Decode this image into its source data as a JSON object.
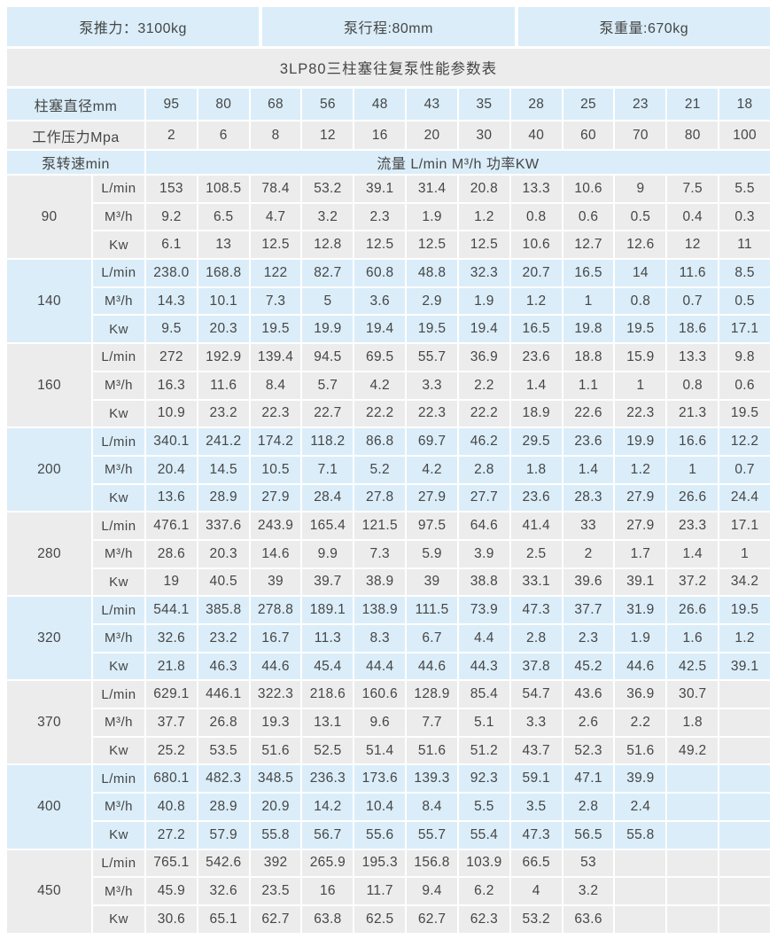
{
  "colors": {
    "accent_blue": "#daedf9",
    "row_grey": "#ececec",
    "text": "#464646"
  },
  "meta": {
    "thrust": "泵推力：3100kg",
    "stroke": "泵行程:80mm",
    "weight": "泵重量:670kg"
  },
  "title": "3LP80三柱塞往复泵性能参数表",
  "headers": {
    "diameter_label": "柱塞直径mm",
    "diameters": [
      "95",
      "80",
      "68",
      "56",
      "48",
      "43",
      "35",
      "28",
      "25",
      "23",
      "21",
      "18"
    ],
    "pressure_label": "工作压力Mpa",
    "pressures": [
      "2",
      "6",
      "8",
      "12",
      "16",
      "20",
      "30",
      "40",
      "60",
      "70",
      "80",
      "100"
    ],
    "speed_label": "泵转速min",
    "flow_power_label": "流量 L/min M³/h  功率KW"
  },
  "unit_labels": [
    "L/min",
    "M³/h",
    "Kw"
  ],
  "groups": [
    {
      "speed": "90",
      "tone": "grey",
      "rows": [
        [
          "153",
          "108.5",
          "78.4",
          "53.2",
          "39.1",
          "31.4",
          "20.8",
          "13.3",
          "10.6",
          "9",
          "7.5",
          "5.5"
        ],
        [
          "9.2",
          "6.5",
          "4.7",
          "3.2",
          "2.3",
          "1.9",
          "1.2",
          "0.8",
          "0.6",
          "0.5",
          "0.4",
          "0.3"
        ],
        [
          "6.1",
          "13",
          "12.5",
          "12.8",
          "12.5",
          "12.5",
          "12.5",
          "10.6",
          "12.7",
          "12.6",
          "12",
          "11"
        ]
      ]
    },
    {
      "speed": "140",
      "tone": "blue",
      "rows": [
        [
          "238.0",
          "168.8",
          "122",
          "82.7",
          "60.8",
          "48.8",
          "32.3",
          "20.7",
          "16.5",
          "14",
          "11.6",
          "8.5"
        ],
        [
          "14.3",
          "10.1",
          "7.3",
          "5",
          "3.6",
          "2.9",
          "1.9",
          "1.2",
          "1",
          "0.8",
          "0.7",
          "0.5"
        ],
        [
          "9.5",
          "20.3",
          "19.5",
          "19.9",
          "19.4",
          "19.5",
          "19.4",
          "16.5",
          "19.8",
          "19.5",
          "18.6",
          "17.1"
        ]
      ]
    },
    {
      "speed": "160",
      "tone": "grey",
      "rows": [
        [
          "272",
          "192.9",
          "139.4",
          "94.5",
          "69.5",
          "55.7",
          "36.9",
          "23.6",
          "18.8",
          "15.9",
          "13.3",
          "9.8"
        ],
        [
          "16.3",
          "11.6",
          "8.4",
          "5.7",
          "4.2",
          "3.3",
          "2.2",
          "1.4",
          "1.1",
          "1",
          "0.8",
          "0.6"
        ],
        [
          "10.9",
          "23.2",
          "22.3",
          "22.7",
          "22.2",
          "22.3",
          "22.2",
          "18.9",
          "22.6",
          "22.3",
          "21.3",
          "19.5"
        ]
      ]
    },
    {
      "speed": "200",
      "tone": "blue",
      "rows": [
        [
          "340.1",
          "241.2",
          "174.2",
          "118.2",
          "86.8",
          "69.7",
          "46.2",
          "29.5",
          "23.6",
          "19.9",
          "16.6",
          "12.2"
        ],
        [
          "20.4",
          "14.5",
          "10.5",
          "7.1",
          "5.2",
          "4.2",
          "2.8",
          "1.8",
          "1.4",
          "1.2",
          "1",
          "0.7"
        ],
        [
          "13.6",
          "28.9",
          "27.9",
          "28.4",
          "27.8",
          "27.9",
          "27.7",
          "23.6",
          "28.3",
          "27.9",
          "26.6",
          "24.4"
        ]
      ]
    },
    {
      "speed": "280",
      "tone": "grey",
      "rows": [
        [
          "476.1",
          "337.6",
          "243.9",
          "165.4",
          "121.5",
          "97.5",
          "64.6",
          "41.4",
          "33",
          "27.9",
          "23.3",
          "17.1"
        ],
        [
          "28.6",
          "20.3",
          "14.6",
          "9.9",
          "7.3",
          "5.9",
          "3.9",
          "2.5",
          "2",
          "1.7",
          "1.4",
          "1"
        ],
        [
          "19",
          "40.5",
          "39",
          "39.7",
          "38.9",
          "39",
          "38.8",
          "33.1",
          "39.6",
          "39.1",
          "37.2",
          "34.2"
        ]
      ]
    },
    {
      "speed": "320",
      "tone": "blue",
      "rows": [
        [
          "544.1",
          "385.8",
          "278.8",
          "189.1",
          "138.9",
          "111.5",
          "73.9",
          "47.3",
          "37.7",
          "31.9",
          "26.6",
          "19.5"
        ],
        [
          "32.6",
          "23.2",
          "16.7",
          "11.3",
          "8.3",
          "6.7",
          "4.4",
          "2.8",
          "2.3",
          "1.9",
          "1.6",
          "1.2"
        ],
        [
          "21.8",
          "46.3",
          "44.6",
          "45.4",
          "44.4",
          "44.6",
          "44.3",
          "37.8",
          "45.2",
          "44.6",
          "42.5",
          "39.1"
        ]
      ]
    },
    {
      "speed": "370",
      "tone": "grey",
      "rows": [
        [
          "629.1",
          "446.1",
          "322.3",
          "218.6",
          "160.6",
          "128.9",
          "85.4",
          "54.7",
          "43.6",
          "36.9",
          "30.7",
          ""
        ],
        [
          "37.7",
          "26.8",
          "19.3",
          "13.1",
          "9.6",
          "7.7",
          "5.1",
          "3.3",
          "2.6",
          "2.2",
          "1.8",
          ""
        ],
        [
          "25.2",
          "53.5",
          "51.6",
          "52.5",
          "51.4",
          "51.6",
          "51.2",
          "43.7",
          "52.3",
          "51.6",
          "49.2",
          ""
        ]
      ]
    },
    {
      "speed": "400",
      "tone": "blue",
      "rows": [
        [
          "680.1",
          "482.3",
          "348.5",
          "236.3",
          "173.6",
          "139.3",
          "92.3",
          "59.1",
          "47.1",
          "39.9",
          "",
          ""
        ],
        [
          "40.8",
          "28.9",
          "20.9",
          "14.2",
          "10.4",
          "8.4",
          "5.5",
          "3.5",
          "2.8",
          "2.4",
          "",
          ""
        ],
        [
          "27.2",
          "57.9",
          "55.8",
          "56.7",
          "55.6",
          "55.7",
          "55.4",
          "47.3",
          "56.5",
          "55.8",
          "",
          ""
        ]
      ]
    },
    {
      "speed": "450",
      "tone": "grey",
      "rows": [
        [
          "765.1",
          "542.6",
          "392",
          "265.9",
          "195.3",
          "156.8",
          "103.9",
          "66.5",
          "53",
          "",
          "",
          ""
        ],
        [
          "45.9",
          "32.6",
          "23.5",
          "16",
          "11.7",
          "9.4",
          "6.2",
          "4",
          "3.2",
          "",
          "",
          ""
        ],
        [
          "30.6",
          "65.1",
          "62.7",
          "63.8",
          "62.5",
          "62.7",
          "62.3",
          "53.2",
          "63.6",
          "",
          "",
          ""
        ]
      ]
    }
  ]
}
